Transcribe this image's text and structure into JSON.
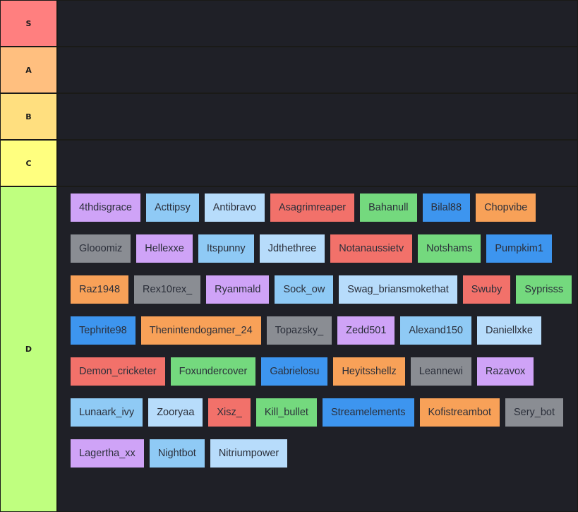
{
  "colors": {
    "background": "#1a1a17",
    "row_background": "#1f2027",
    "purple": "#cfa3f7",
    "light_blue": "#8fcaf5",
    "pale_blue": "#b7dcfb",
    "red": "#f2716a",
    "green": "#74d97e",
    "blue": "#3d95ef",
    "orange": "#f8a158",
    "gray": "#8a8d93"
  },
  "tiers": [
    {
      "label": "S",
      "color": "#ff7f7f",
      "items": []
    },
    {
      "label": "A",
      "color": "#ffbf7f",
      "items": []
    },
    {
      "label": "B",
      "color": "#ffdf7f",
      "items": []
    },
    {
      "label": "C",
      "color": "#ffff7f",
      "items": []
    },
    {
      "label": "D",
      "color": "#bfff7f",
      "items": [
        {
          "name": "4thdisgrace",
          "color": "purple"
        },
        {
          "name": "Acttipsy",
          "color": "light_blue"
        },
        {
          "name": "Antibravo",
          "color": "pale_blue"
        },
        {
          "name": "Asagrimreaper",
          "color": "red"
        },
        {
          "name": "Bahanull",
          "color": "green"
        },
        {
          "name": "Bilal88",
          "color": "blue"
        },
        {
          "name": "Chopvibe",
          "color": "orange"
        },
        {
          "name": "Glooomiz",
          "color": "gray"
        },
        {
          "name": "Hellexxe",
          "color": "purple"
        },
        {
          "name": "Itspunny",
          "color": "light_blue"
        },
        {
          "name": "Jdthethree",
          "color": "pale_blue"
        },
        {
          "name": "Notanaussietv",
          "color": "red"
        },
        {
          "name": "Notshams",
          "color": "green"
        },
        {
          "name": "Pumpkim1",
          "color": "blue"
        },
        {
          "name": "Raz1948",
          "color": "orange"
        },
        {
          "name": "Rex10rex_",
          "color": "gray"
        },
        {
          "name": "Ryanmald",
          "color": "purple"
        },
        {
          "name": "Sock_ow",
          "color": "light_blue"
        },
        {
          "name": "Swag_briansmokethat",
          "color": "pale_blue"
        },
        {
          "name": "Swuby",
          "color": "red"
        },
        {
          "name": "Syprisss",
          "color": "green"
        },
        {
          "name": "Tephrite98",
          "color": "blue"
        },
        {
          "name": "Thenintendogamer_24",
          "color": "orange"
        },
        {
          "name": "Topazsky_",
          "color": "gray"
        },
        {
          "name": "Zedd501",
          "color": "purple"
        },
        {
          "name": "Alexand150",
          "color": "light_blue"
        },
        {
          "name": "Daniellxke",
          "color": "pale_blue"
        },
        {
          "name": "Demon_cricketer",
          "color": "red"
        },
        {
          "name": "Foxundercover",
          "color": "green"
        },
        {
          "name": "Gabrielosu",
          "color": "blue"
        },
        {
          "name": "Heyitsshellz",
          "color": "orange"
        },
        {
          "name": "Leannewi",
          "color": "gray"
        },
        {
          "name": "Razavox",
          "color": "purple"
        },
        {
          "name": "Lunaark_ivy",
          "color": "light_blue"
        },
        {
          "name": "Zooryaa",
          "color": "pale_blue"
        },
        {
          "name": "Xisz_",
          "color": "red"
        },
        {
          "name": "Kill_bullet",
          "color": "green"
        },
        {
          "name": "Streamelements",
          "color": "blue"
        },
        {
          "name": "Kofistreambot",
          "color": "orange"
        },
        {
          "name": "Sery_bot",
          "color": "gray"
        },
        {
          "name": "Lagertha_xx",
          "color": "purple"
        },
        {
          "name": "Nightbot",
          "color": "light_blue"
        },
        {
          "name": "Nitriumpower",
          "color": "pale_blue"
        }
      ]
    }
  ]
}
